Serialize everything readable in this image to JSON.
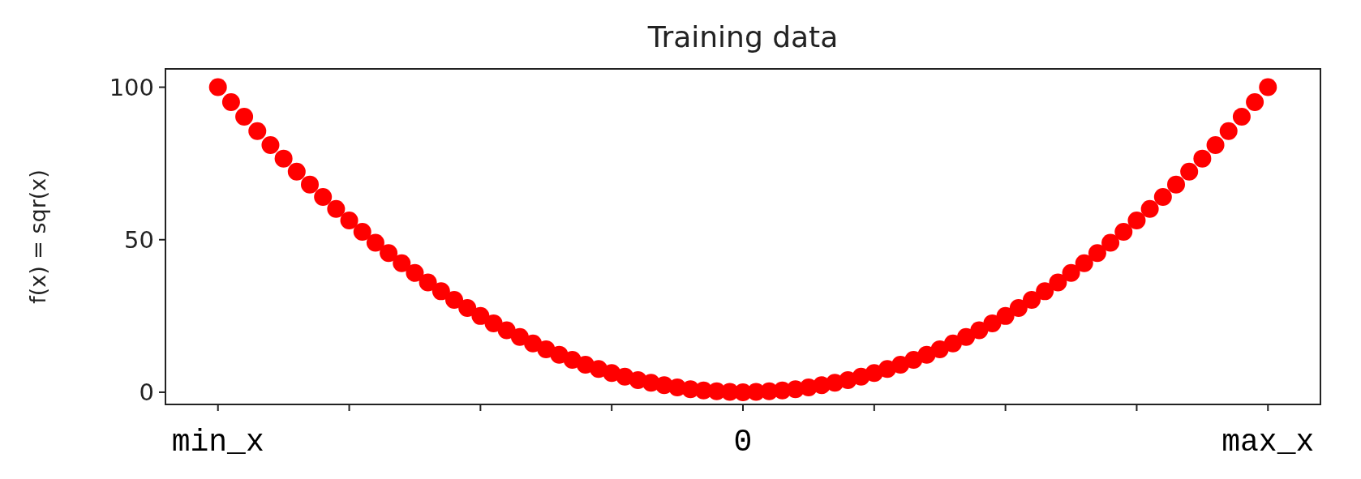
{
  "chart_data": {
    "type": "scatter",
    "title": "Training data",
    "ylabel": "f(x) = sqr(x)",
    "categories": [
      "min_x",
      null,
      null,
      null,
      null,
      null,
      null,
      null,
      null,
      null,
      null,
      null,
      null,
      null,
      null,
      null,
      null,
      null,
      null,
      null,
      null,
      null,
      null,
      null,
      null,
      null,
      null,
      null,
      null,
      null,
      null,
      null,
      null,
      null,
      null,
      null,
      null,
      null,
      null,
      null,
      "0",
      null,
      null,
      null,
      null,
      null,
      null,
      null,
      null,
      null,
      null,
      null,
      null,
      null,
      null,
      null,
      null,
      null,
      null,
      null,
      null,
      null,
      null,
      null,
      null,
      null,
      null,
      null,
      null,
      null,
      null,
      null,
      null,
      null,
      null,
      null,
      null,
      null,
      null,
      null,
      "max_x"
    ],
    "series": [
      {
        "color": "#ff0000",
        "values": [
          100,
          95.1,
          90.3,
          85.6,
          81,
          76.6,
          72.3,
          68.1,
          64,
          60.1,
          56.3,
          52.6,
          49,
          45.6,
          42.3,
          39.1,
          36,
          33.1,
          30.3,
          27.6,
          25,
          22.6,
          20.3,
          18.1,
          16,
          14.1,
          12.3,
          10.6,
          9,
          7.6,
          6.3,
          5.1,
          4,
          3.1,
          2.3,
          1.6,
          1,
          0.6,
          0.3,
          0.1,
          0,
          0.1,
          0.3,
          0.6,
          1,
          1.6,
          2.3,
          3.1,
          4,
          5.1,
          6.3,
          7.6,
          9,
          10.6,
          12.3,
          14.1,
          16,
          18.1,
          20.3,
          22.6,
          25,
          27.6,
          30.3,
          33.1,
          36,
          39.1,
          42.3,
          45.6,
          49,
          52.6,
          56.3,
          60.1,
          64,
          68.1,
          72.3,
          76.6,
          81,
          85.6,
          90.3,
          95.1,
          100
        ]
      }
    ],
    "marker": "circle",
    "ylim": [
      -4,
      106
    ],
    "yticks": [
      0,
      50,
      100
    ]
  }
}
